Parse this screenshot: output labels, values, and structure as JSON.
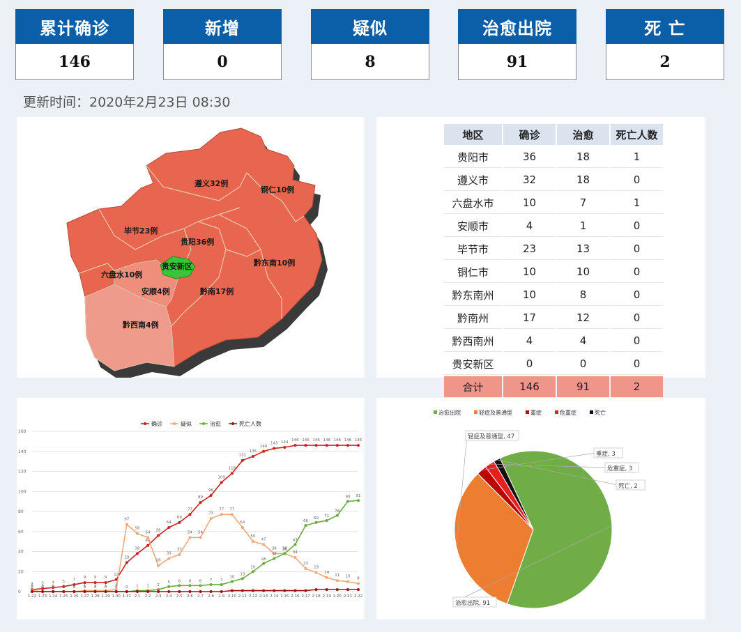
{
  "stats": [
    {
      "label": "累计确诊",
      "value": "146"
    },
    {
      "label": "新增",
      "value": "0"
    },
    {
      "label": "疑似",
      "value": "8"
    },
    {
      "label": "治愈出院",
      "value": "91"
    },
    {
      "label": "死 亡",
      "value": "2"
    }
  ],
  "updated": "更新时间：2020年2月23日  08:30",
  "map": {
    "fill_color": "#e8654f",
    "highlight_color": "#39c43a",
    "light_color": "#ef9b8b",
    "regions": [
      {
        "name": "遵义32例"
      },
      {
        "name": "铜仁10例"
      },
      {
        "name": "毕节23例"
      },
      {
        "name": "贵阳36例"
      },
      {
        "name": "贵安新区"
      },
      {
        "name": "黔东南10例"
      },
      {
        "name": "六盘水10例"
      },
      {
        "name": "安顺4例"
      },
      {
        "name": "黔南17例"
      },
      {
        "name": "黔西南4例"
      }
    ]
  },
  "table": {
    "headers": [
      "地区",
      "确诊",
      "治愈",
      "死亡人数"
    ],
    "rows": [
      [
        "贵阳市",
        "36",
        "18",
        "1"
      ],
      [
        "遵义市",
        "32",
        "18",
        "0"
      ],
      [
        "六盘水市",
        "10",
        "7",
        "1"
      ],
      [
        "安顺市",
        "4",
        "1",
        "0"
      ],
      [
        "毕节市",
        "23",
        "13",
        "0"
      ],
      [
        "铜仁市",
        "10",
        "10",
        "0"
      ],
      [
        "黔东南州",
        "10",
        "8",
        "0"
      ],
      [
        "黔南州",
        "17",
        "12",
        "0"
      ],
      [
        "黔西南州",
        "4",
        "4",
        "0"
      ],
      [
        "贵安新区",
        "0",
        "0",
        "0"
      ]
    ],
    "total": [
      "合计",
      "146",
      "91",
      "2"
    ]
  },
  "chart_data": [
    {
      "type": "line",
      "x": [
        "1.22",
        "1.23",
        "1.24",
        "1.25",
        "1.26",
        "1.27",
        "1.28",
        "1.29",
        "1.30",
        "1.31",
        "2.1",
        "2.2",
        "2.3",
        "2.4",
        "2.5",
        "2.6",
        "2.7",
        "2.8",
        "2.9",
        "2.10",
        "2.11",
        "2.12",
        "2.13",
        "2.14",
        "2.15",
        "2.16",
        "2.17",
        "2.18",
        "2.19",
        "2.20",
        "2.21",
        "2.22"
      ],
      "ylim": [
        0,
        160
      ],
      "yticks": [
        0,
        20,
        40,
        60,
        80,
        100,
        120,
        140,
        160
      ],
      "legend_position": "top",
      "series": [
        {
          "name": "确诊",
          "color": "#cc1f1f",
          "values": [
            2,
            3,
            4,
            5,
            7,
            9,
            9,
            9,
            12,
            29,
            38,
            46,
            56,
            64,
            69,
            77,
            89,
            96,
            109,
            118,
            131,
            135,
            140,
            143,
            144,
            146,
            146,
            146,
            146,
            146,
            146,
            146
          ]
        },
        {
          "name": "疑似",
          "color": "#f0a878",
          "values": [
            1,
            0,
            0,
            0,
            0,
            1,
            1,
            1,
            2,
            67,
            58,
            54,
            26,
            33,
            37,
            54,
            54,
            73,
            77,
            77,
            64,
            50,
            47,
            38,
            38,
            34,
            23,
            19,
            14,
            11,
            10,
            8
          ]
        },
        {
          "name": "治愈",
          "color": "#6aaa3a",
          "values": [
            0,
            0,
            0,
            0,
            0,
            0,
            0,
            0,
            0,
            0,
            1,
            1,
            2,
            5,
            6,
            6,
            6,
            7,
            7,
            10,
            13,
            20,
            28,
            33,
            38,
            47,
            66,
            69,
            71,
            76,
            90,
            91
          ]
        },
        {
          "name": "死亡人数",
          "color": "#9e1010",
          "values": [
            0,
            0,
            0,
            0,
            0,
            0,
            0,
            0,
            0,
            0,
            0,
            0,
            0,
            0,
            0,
            0,
            0,
            0,
            0,
            1,
            1,
            1,
            1,
            1,
            1,
            1,
            1,
            2,
            2,
            2,
            2,
            2
          ]
        }
      ]
    },
    {
      "type": "pie",
      "legend_position": "top",
      "slices": [
        {
          "name": "治愈出院",
          "value": 91,
          "color": "#70ad47",
          "label": "治愈出院, 91"
        },
        {
          "name": "轻症及普通型",
          "value": 47,
          "color": "#ed7d31",
          "label": "轻症及普通型, 47"
        },
        {
          "name": "重症",
          "value": 3,
          "color": "#c00000",
          "label": "重症, 3"
        },
        {
          "name": "危重症",
          "value": 3,
          "color": "#e81f1f",
          "label": "危重症, 3"
        },
        {
          "name": "死亡",
          "value": 2,
          "color": "#111111",
          "label": "死亡, 2"
        }
      ]
    }
  ]
}
